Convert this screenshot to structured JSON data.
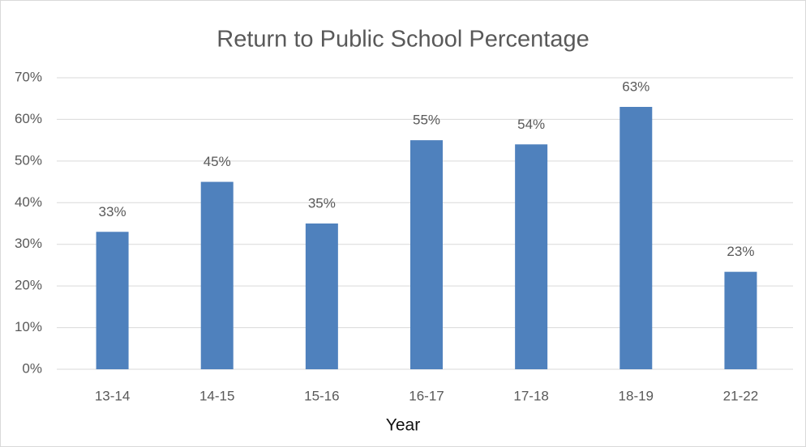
{
  "chart_data": {
    "type": "bar",
    "title": "Return to Public School Percentage",
    "x_label": "Year",
    "categories": [
      "13-14",
      "14-15",
      "15-16",
      "16-17",
      "17-18",
      "18-19",
      "21-22"
    ],
    "values": [
      33,
      45,
      35,
      55,
      54,
      63,
      23.4
    ],
    "value_labels": [
      "33%",
      "45%",
      "35%",
      "55%",
      "54%",
      "63%",
      "23%"
    ],
    "color": "#4f81bd",
    "ylim": [
      0,
      70
    ],
    "yticks": [
      {
        "value": 0,
        "label": "0%"
      },
      {
        "value": 10,
        "label": "10%"
      },
      {
        "value": 20,
        "label": "20%"
      },
      {
        "value": 30,
        "label": "30%"
      },
      {
        "value": 40,
        "label": "40%"
      },
      {
        "value": 50,
        "label": "50%"
      },
      {
        "value": 60,
        "label": "60%"
      },
      {
        "value": 70,
        "label": "70%"
      }
    ],
    "grid": true
  }
}
